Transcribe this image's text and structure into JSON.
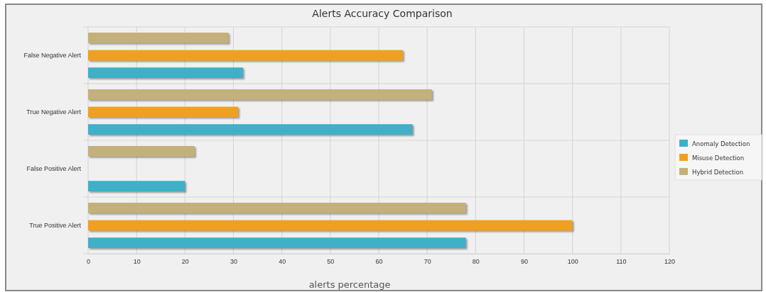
{
  "chart_data": {
    "type": "bar",
    "orientation": "horizontal",
    "title": "Alerts Accuracy Comparison",
    "xlabel": "alerts percentage",
    "categories": [
      "False Negative Alert",
      "True Negative Alert",
      "False Positive Alert",
      "True Positive Alert"
    ],
    "series": [
      {
        "name": "Anomaly Detection",
        "color": "#3fb0c8",
        "values": [
          32,
          67,
          20,
          78
        ]
      },
      {
        "name": "Misuse Detection",
        "color": "#f0a020",
        "values": [
          65,
          31,
          0,
          100
        ]
      },
      {
        "name": "Hybrid Detection",
        "color": "#c4b07a",
        "values": [
          29,
          71,
          22,
          78
        ]
      }
    ],
    "xlim": [
      0,
      120
    ],
    "xticks": [
      0,
      10,
      20,
      30,
      40,
      50,
      60,
      70,
      80,
      90,
      100,
      110,
      120
    ],
    "grid": true,
    "legend": "right"
  }
}
